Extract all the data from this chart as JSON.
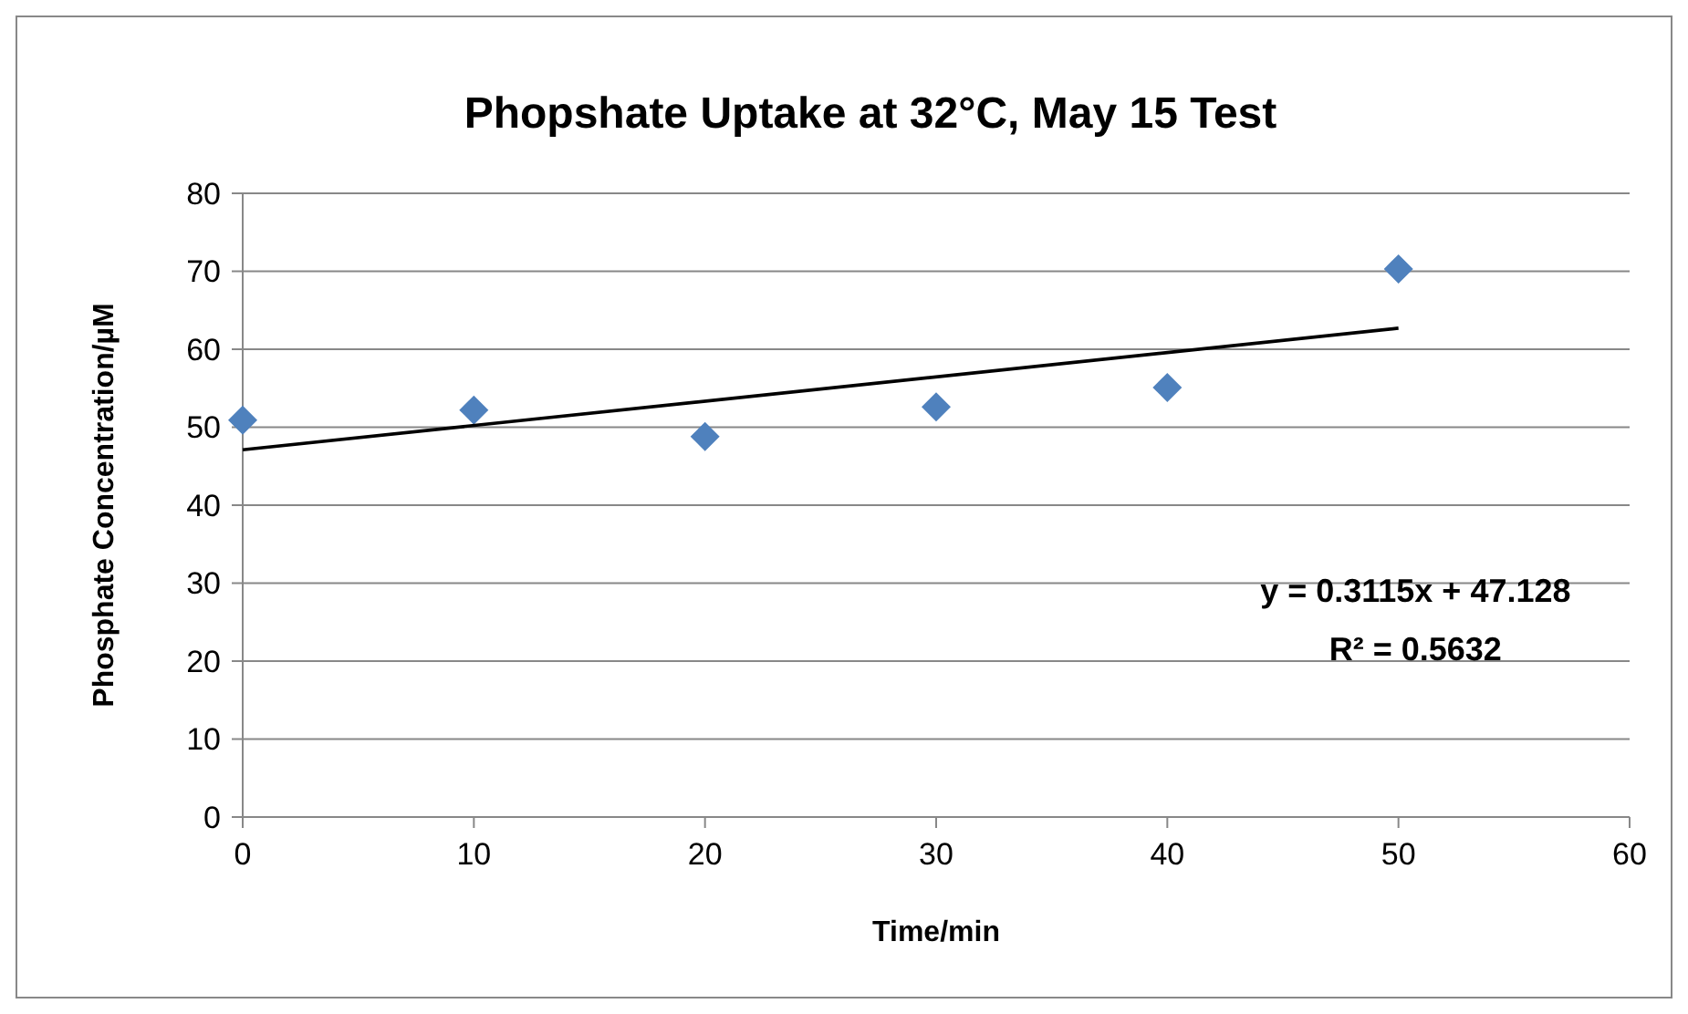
{
  "chart_data": {
    "type": "scatter",
    "title": "Phopshate Uptake at 32°C, May 15 Test",
    "xlabel": "Time/min",
    "ylabel": "Phosphate Concentration/µM",
    "x": [
      0,
      10,
      20,
      30,
      40,
      50
    ],
    "series": [
      {
        "color": "#4f81bd",
        "marker": "diamond",
        "values": [
          50.9,
          52.2,
          48.8,
          52.6,
          55.1,
          70.3
        ]
      },
      {
        "type": "line",
        "color": "#000000",
        "x": [
          0,
          50
        ],
        "values": [
          47.1,
          62.7
        ],
        "marker": "none",
        "line_style": "solid"
      }
    ],
    "xlim": [
      0,
      60
    ],
    "xticks": [
      0,
      10,
      20,
      30,
      40,
      50,
      60
    ],
    "ylim": [
      0,
      80
    ],
    "yticks": [
      0,
      10,
      20,
      30,
      40,
      50,
      60,
      70,
      80
    ],
    "grid": "y",
    "annotations": [
      "y = 0.3115x + 47.128",
      "R² = 0.5632"
    ]
  }
}
